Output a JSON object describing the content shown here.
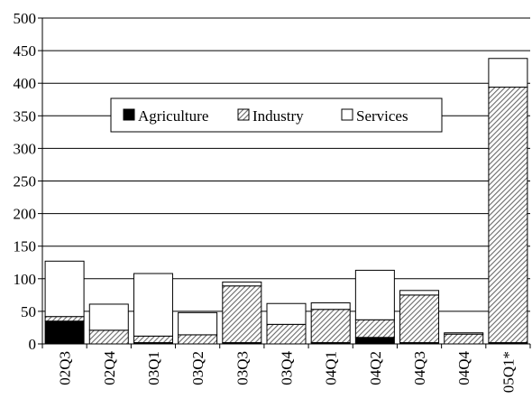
{
  "chart_data": {
    "type": "bar",
    "stacked": true,
    "categories": [
      "02Q3",
      "02Q4",
      "03Q1",
      "03Q2",
      "03Q3",
      "03Q4",
      "04Q1",
      "04Q2",
      "04Q3",
      "04Q4",
      "05Q1*"
    ],
    "series": [
      {
        "name": "Agriculture",
        "fill": "solid-black",
        "values": [
          35,
          0,
          2,
          0,
          2,
          0,
          2,
          10,
          2,
          0,
          2
        ]
      },
      {
        "name": "Industry",
        "fill": "hatch-gray",
        "values": [
          7,
          21,
          10,
          14,
          87,
          30,
          51,
          27,
          73,
          15,
          392
        ]
      },
      {
        "name": "Services",
        "fill": "white",
        "values": [
          85,
          40,
          96,
          34,
          6,
          32,
          10,
          76,
          7,
          2,
          44
        ]
      }
    ],
    "ylim": [
      0,
      500
    ],
    "yticks": [
      0,
      50,
      100,
      150,
      200,
      250,
      300,
      350,
      400,
      450,
      500
    ],
    "grid": true,
    "legend_position": "inside-top-center",
    "colors": {
      "agriculture": "#000000",
      "industry_hatch": "#707070",
      "services": "#ffffff",
      "grid": "#000000"
    }
  }
}
